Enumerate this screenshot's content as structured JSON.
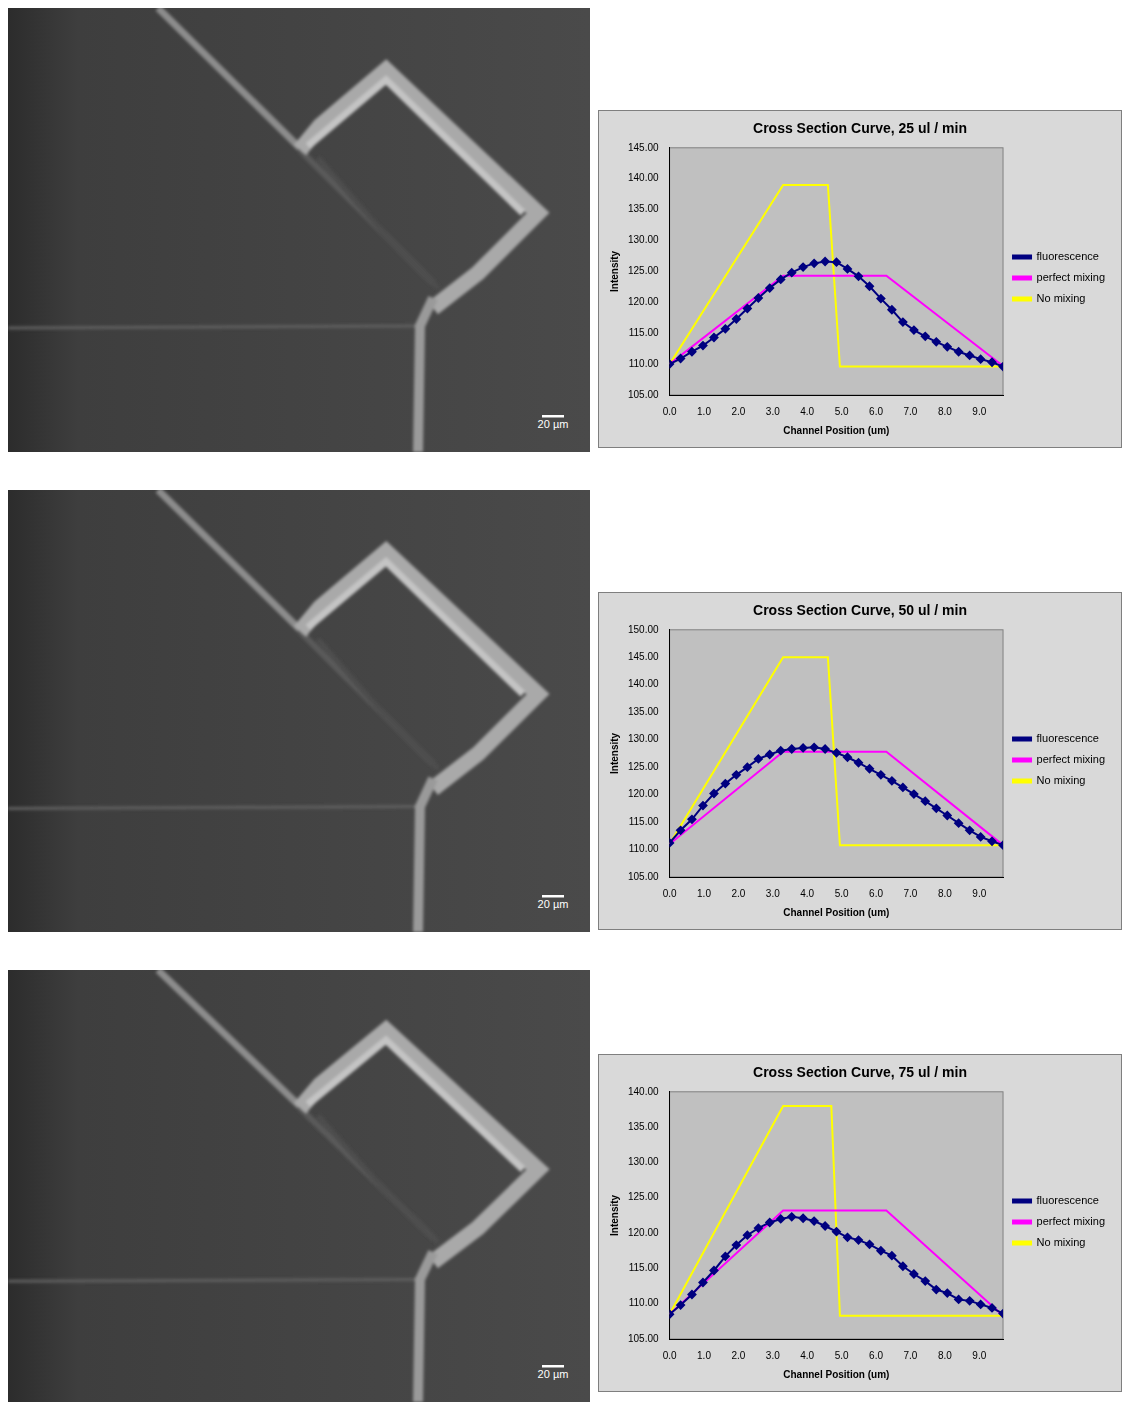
{
  "micrographs": [
    {
      "scale_bar": "20 µm"
    },
    {
      "scale_bar": "20 µm"
    },
    {
      "scale_bar": "20 µm"
    }
  ],
  "chart_data": [
    {
      "type": "line",
      "title": "Cross Section Curve, 25 ul / min",
      "x_label": "Channel Position (um)",
      "y_label": "Intensity",
      "xlim": [
        0,
        9.69
      ],
      "xticks": [
        {
          "value": 0,
          "label": "0.0"
        },
        {
          "value": 1,
          "label": "1.0"
        },
        {
          "value": 2,
          "label": "2.0"
        },
        {
          "value": 3,
          "label": "3.0"
        },
        {
          "value": 4,
          "label": "4.0"
        },
        {
          "value": 5,
          "label": "5.0"
        },
        {
          "value": 6,
          "label": "6.0"
        },
        {
          "value": 7,
          "label": "7.0"
        },
        {
          "value": 8,
          "label": "8.0"
        },
        {
          "value": 9,
          "label": "9.0"
        }
      ],
      "ylim": [
        105,
        145
      ],
      "yticks": [
        {
          "value": 105,
          "label": "105.00"
        },
        {
          "value": 110,
          "label": "110.00"
        },
        {
          "value": 115,
          "label": "115.00"
        },
        {
          "value": 120,
          "label": "120.00"
        },
        {
          "value": 125,
          "label": "125.00"
        },
        {
          "value": 130,
          "label": "130.00"
        },
        {
          "value": 135,
          "label": "135.00"
        },
        {
          "value": 140,
          "label": "140.00"
        },
        {
          "value": 145,
          "label": "145.00"
        }
      ],
      "grid": false,
      "legend": "right",
      "series": [
        {
          "name": "fluorescence",
          "color": "#000080",
          "marker": "diamond",
          "x": [
            0,
            0.32,
            0.65,
            0.97,
            1.29,
            1.62,
            1.94,
            2.26,
            2.58,
            2.91,
            3.23,
            3.55,
            3.88,
            4.2,
            4.52,
            4.85,
            5.17,
            5.49,
            5.81,
            6.14,
            6.46,
            6.78,
            7.1,
            7.43,
            7.75,
            8.07,
            8.4,
            8.72,
            9.04,
            9.37,
            9.69
          ],
          "values": [
            110.0,
            110.9,
            112.0,
            113.0,
            114.3,
            115.7,
            117.3,
            119.0,
            120.7,
            122.3,
            123.7,
            124.8,
            125.7,
            126.3,
            126.6,
            126.5,
            125.4,
            124.2,
            122.6,
            120.6,
            118.8,
            116.8,
            115.5,
            114.5,
            113.6,
            112.8,
            112.0,
            111.4,
            110.8,
            110.3,
            109.6
          ]
        },
        {
          "name": "perfect mixing",
          "color": "#ff00ff",
          "marker": "none",
          "x": [
            0,
            3.3,
            6.3,
            9.69
          ],
          "values": [
            110.0,
            124.3,
            124.3,
            109.7
          ]
        },
        {
          "name": "No mixing",
          "color": "#ffff00",
          "marker": "none",
          "x": [
            0,
            3.3,
            4.6,
            4.95,
            9.69
          ],
          "values": [
            110.0,
            139.0,
            139.0,
            109.6,
            109.6
          ]
        }
      ]
    },
    {
      "type": "line",
      "title": "Cross Section Curve, 50 ul / min",
      "x_label": "Channel Position (um)",
      "y_label": "Intensity",
      "xlim": [
        0,
        9.69
      ],
      "xticks": [
        {
          "value": 0,
          "label": "0.0"
        },
        {
          "value": 1,
          "label": "1.0"
        },
        {
          "value": 2,
          "label": "2.0"
        },
        {
          "value": 3,
          "label": "3.0"
        },
        {
          "value": 4,
          "label": "4.0"
        },
        {
          "value": 5,
          "label": "5.0"
        },
        {
          "value": 6,
          "label": "6.0"
        },
        {
          "value": 7,
          "label": "7.0"
        },
        {
          "value": 8,
          "label": "8.0"
        },
        {
          "value": 9,
          "label": "9.0"
        }
      ],
      "ylim": [
        105,
        150
      ],
      "yticks": [
        {
          "value": 105,
          "label": "105.00"
        },
        {
          "value": 110,
          "label": "110.00"
        },
        {
          "value": 115,
          "label": "115.00"
        },
        {
          "value": 120,
          "label": "120.00"
        },
        {
          "value": 125,
          "label": "125.00"
        },
        {
          "value": 130,
          "label": "130.00"
        },
        {
          "value": 135,
          "label": "135.00"
        },
        {
          "value": 140,
          "label": "140.00"
        },
        {
          "value": 145,
          "label": "145.00"
        },
        {
          "value": 150,
          "label": "150.00"
        }
      ],
      "grid": false,
      "legend": "right",
      "series": [
        {
          "name": "fluorescence",
          "color": "#000080",
          "marker": "diamond",
          "x": [
            0,
            0.32,
            0.65,
            0.97,
            1.29,
            1.62,
            1.94,
            2.26,
            2.58,
            2.91,
            3.23,
            3.55,
            3.88,
            4.2,
            4.52,
            4.85,
            5.17,
            5.49,
            5.81,
            6.14,
            6.46,
            6.78,
            7.1,
            7.43,
            7.75,
            8.07,
            8.4,
            8.72,
            9.04,
            9.37,
            9.69
          ],
          "values": [
            111.2,
            113.5,
            115.5,
            118.0,
            120.2,
            122.0,
            123.6,
            125.0,
            126.5,
            127.3,
            128.0,
            128.3,
            128.5,
            128.6,
            128.3,
            127.6,
            126.8,
            125.8,
            124.7,
            123.6,
            122.5,
            121.3,
            120.1,
            118.8,
            117.5,
            116.2,
            114.8,
            113.5,
            112.3,
            111.5,
            110.8
          ]
        },
        {
          "name": "perfect mixing",
          "color": "#ff00ff",
          "marker": "none",
          "x": [
            0,
            3.3,
            6.3,
            9.69
          ],
          "values": [
            111.0,
            127.8,
            127.8,
            110.8
          ]
        },
        {
          "name": "No mixing",
          "color": "#ffff00",
          "marker": "none",
          "x": [
            0,
            3.3,
            4.6,
            4.95,
            9.69
          ],
          "values": [
            111.0,
            145.0,
            145.0,
            110.8,
            110.8
          ]
        }
      ]
    },
    {
      "type": "line",
      "title": "Cross Section Curve, 75 ul / min",
      "x_label": "Channel Position (um)",
      "y_label": "Intensity",
      "xlim": [
        0,
        9.69
      ],
      "xticks": [
        {
          "value": 0,
          "label": "0.0"
        },
        {
          "value": 1,
          "label": "1.0"
        },
        {
          "value": 2,
          "label": "2.0"
        },
        {
          "value": 3,
          "label": "3.0"
        },
        {
          "value": 4,
          "label": "4.0"
        },
        {
          "value": 5,
          "label": "5.0"
        },
        {
          "value": 6,
          "label": "6.0"
        },
        {
          "value": 7,
          "label": "7.0"
        },
        {
          "value": 8,
          "label": "8.0"
        },
        {
          "value": 9,
          "label": "9.0"
        }
      ],
      "ylim": [
        105,
        140
      ],
      "yticks": [
        {
          "value": 105,
          "label": "105.00"
        },
        {
          "value": 110,
          "label": "110.00"
        },
        {
          "value": 115,
          "label": "115.00"
        },
        {
          "value": 120,
          "label": "120.00"
        },
        {
          "value": 125,
          "label": "125.00"
        },
        {
          "value": 130,
          "label": "130.00"
        },
        {
          "value": 135,
          "label": "135.00"
        },
        {
          "value": 140,
          "label": "140.00"
        }
      ],
      "grid": false,
      "legend": "right",
      "series": [
        {
          "name": "fluorescence",
          "color": "#000080",
          "marker": "diamond",
          "x": [
            0,
            0.32,
            0.65,
            0.97,
            1.29,
            1.62,
            1.94,
            2.26,
            2.58,
            2.91,
            3.23,
            3.55,
            3.88,
            4.2,
            4.52,
            4.85,
            5.17,
            5.49,
            5.81,
            6.14,
            6.46,
            6.78,
            7.1,
            7.43,
            7.75,
            8.07,
            8.4,
            8.72,
            9.04,
            9.37,
            9.69
          ],
          "values": [
            108.5,
            109.8,
            111.3,
            113.0,
            114.7,
            116.7,
            118.3,
            119.7,
            120.7,
            121.5,
            122.0,
            122.3,
            122.1,
            121.7,
            121.0,
            120.2,
            119.4,
            119.0,
            118.4,
            117.5,
            116.8,
            115.3,
            114.2,
            113.2,
            112.0,
            111.5,
            110.6,
            110.4,
            109.9,
            109.4,
            108.6
          ]
        },
        {
          "name": "perfect mixing",
          "color": "#ff00ff",
          "marker": "none",
          "x": [
            0,
            3.3,
            6.3,
            9.69
          ],
          "values": [
            108.5,
            123.2,
            123.2,
            108.3
          ]
        },
        {
          "name": "No mixing",
          "color": "#ffff00",
          "marker": "none",
          "x": [
            0,
            3.3,
            4.7,
            4.95,
            9.69
          ],
          "values": [
            108.5,
            138.0,
            138.0,
            108.3,
            108.3
          ]
        }
      ]
    }
  ]
}
